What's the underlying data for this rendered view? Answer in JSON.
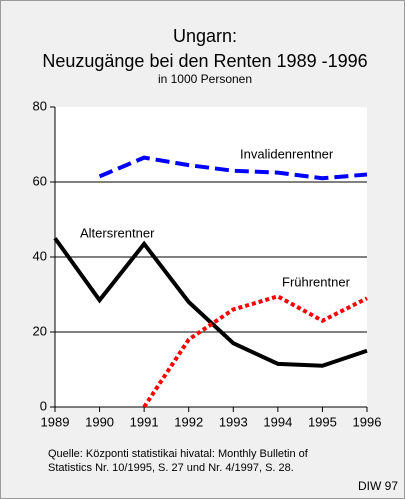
{
  "chart_data": {
    "type": "line",
    "title": "Ungarn:",
    "subtitle": "Neuzugänge bei den Renten 1989 -1996",
    "unit": "in 1000 Personen",
    "x": [
      1989,
      1990,
      1991,
      1992,
      1993,
      1994,
      1995,
      1996
    ],
    "xlim": [
      1989,
      1996
    ],
    "xticks": [
      1989,
      1990,
      1991,
      1992,
      1993,
      1994,
      1995,
      1996
    ],
    "ylim": [
      0,
      80
    ],
    "yticks": [
      0,
      20,
      40,
      60,
      80
    ],
    "grid": true,
    "series": [
      {
        "name": "Invalidenrentner",
        "color": "#0000ff",
        "style": "dashed",
        "values": [
          null,
          61.5,
          66.5,
          64.5,
          63,
          62.5,
          61,
          62
        ]
      },
      {
        "name": "Altersrentner",
        "color": "#000000",
        "style": "solid",
        "values": [
          45,
          28.5,
          43.5,
          28,
          17,
          11.5,
          11,
          15
        ]
      },
      {
        "name": "Frührentner",
        "color": "#ff0000",
        "style": "dotted",
        "values": [
          null,
          null,
          0,
          18,
          26,
          29.5,
          23,
          29
        ]
      }
    ],
    "source": [
      "Quelle: Központi statistikai hivatal: Monthly Bulletin of",
      "Statistics Nr. 10/1995, S. 27 und Nr. 4/1997, S. 28."
    ],
    "credit": "DIW 97"
  }
}
